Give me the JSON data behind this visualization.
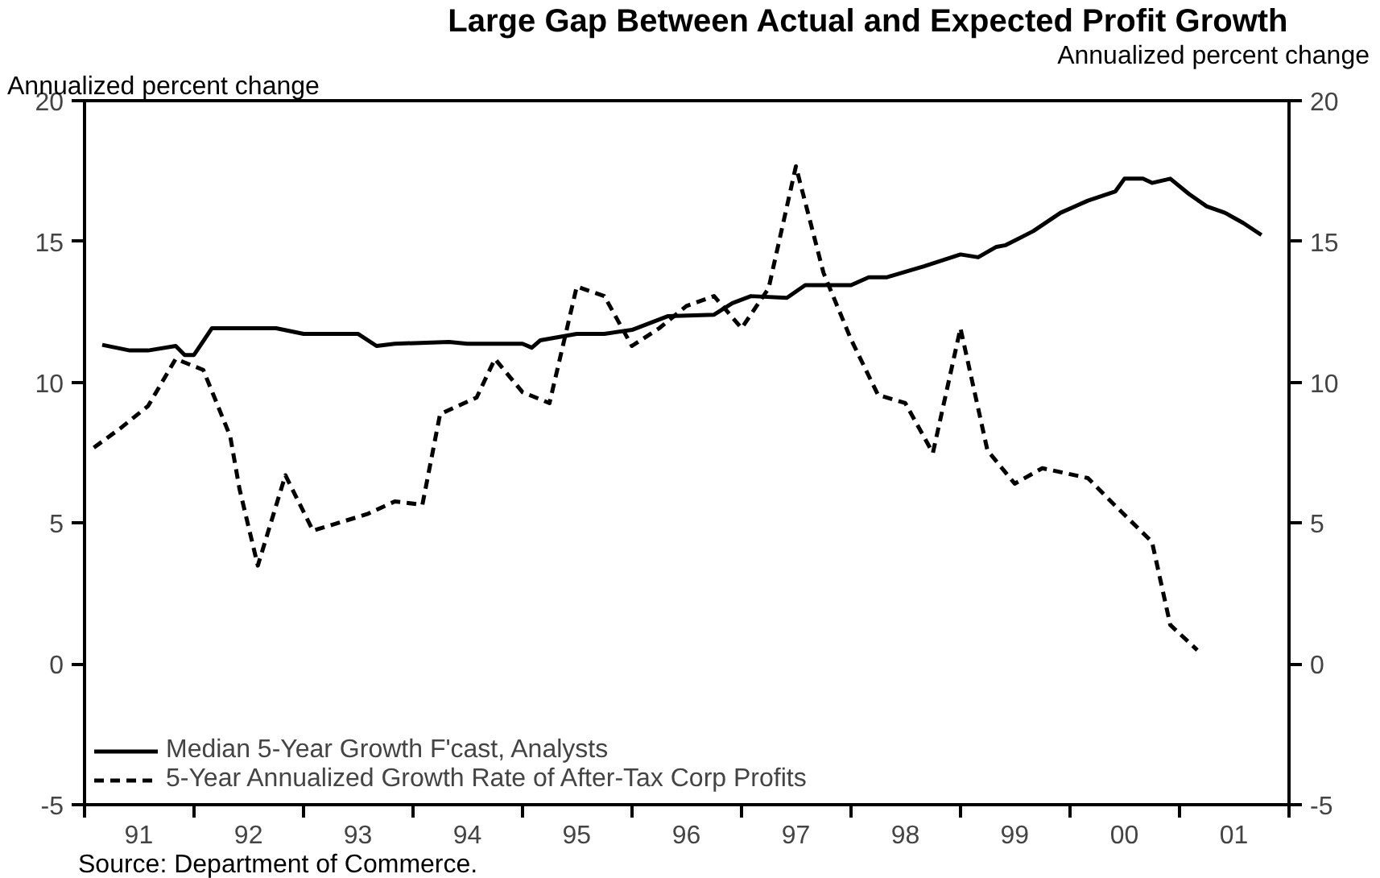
{
  "chart_data": {
    "type": "line",
    "title": "Large Gap Between Actual and Expected Profit Growth",
    "ylabel": "Annualized percent change",
    "y2label": "Annualized percent change",
    "annotations": [
      "Source: Department of Commerce."
    ],
    "xlim": [
      "1991-01",
      "2002-01"
    ],
    "ylim": [
      -5,
      20
    ],
    "y2lim": [
      -5,
      20
    ],
    "xticks": [
      {
        "value": "1991-01",
        "label": null
      },
      {
        "value": "1991-07",
        "label": "91"
      },
      {
        "value": "1992-01",
        "label": null
      },
      {
        "value": "1992-07",
        "label": "92"
      },
      {
        "value": "1993-01",
        "label": null
      },
      {
        "value": "1993-07",
        "label": "93"
      },
      {
        "value": "1994-01",
        "label": null
      },
      {
        "value": "1994-07",
        "label": "94"
      },
      {
        "value": "1995-01",
        "label": null
      },
      {
        "value": "1995-07",
        "label": "95"
      },
      {
        "value": "1996-01",
        "label": null
      },
      {
        "value": "1996-07",
        "label": "96"
      },
      {
        "value": "1997-01",
        "label": null
      },
      {
        "value": "1997-07",
        "label": "97"
      },
      {
        "value": "1998-01",
        "label": null
      },
      {
        "value": "1998-07",
        "label": "98"
      },
      {
        "value": "1999-01",
        "label": null
      },
      {
        "value": "1999-07",
        "label": "99"
      },
      {
        "value": "2000-01",
        "label": null
      },
      {
        "value": "2000-07",
        "label": "00"
      },
      {
        "value": "2001-01",
        "label": null
      },
      {
        "value": "2001-07",
        "label": "01"
      },
      {
        "value": "2002-01",
        "label": null
      }
    ],
    "yticks": [
      -5,
      0,
      5,
      10,
      15,
      20
    ],
    "y2ticks": [
      -5,
      0,
      5,
      10,
      15,
      20
    ],
    "legend": "bottom left",
    "series": [
      {
        "name": "Median 5-Year Growth F'cast, Analysts",
        "color": "#000000",
        "line_style": "solid",
        "x": [
          "1991-03",
          "1991-06",
          "1991-08",
          "1991-11",
          "1991-12",
          "1992-01",
          "1992-03",
          "1992-10",
          "1993-01",
          "1993-07",
          "1993-09",
          "1993-11",
          "1994-05",
          "1994-07",
          "1995-01",
          "1995-02",
          "1995-03",
          "1995-07",
          "1995-10",
          "1996-01",
          "1996-05",
          "1996-10",
          "1996-12",
          "1997-02",
          "1997-06",
          "1997-08",
          "1998-01",
          "1998-03",
          "1998-05",
          "1998-09",
          "1999-01",
          "1999-03",
          "1999-05",
          "1999-06",
          "1999-09",
          "1999-12",
          "2000-03",
          "2000-06",
          "2000-07",
          "2000-09",
          "2000-10",
          "2000-12",
          "2001-02",
          "2001-04",
          "2001-06",
          "2001-08",
          "2001-10"
        ],
        "values": [
          11.33,
          11.13,
          11.13,
          11.29,
          10.97,
          10.97,
          11.92,
          11.92,
          11.72,
          11.72,
          11.29,
          11.37,
          11.43,
          11.37,
          11.37,
          11.23,
          11.49,
          11.72,
          11.72,
          11.86,
          12.35,
          12.4,
          12.81,
          13.06,
          13.0,
          13.45,
          13.45,
          13.73,
          13.73,
          14.12,
          14.54,
          14.44,
          14.81,
          14.87,
          15.37,
          16.02,
          16.45,
          16.78,
          17.23,
          17.23,
          17.08,
          17.23,
          16.69,
          16.25,
          16.02,
          15.66,
          15.23
        ]
      },
      {
        "name": "5-Year Annualized Growth Rate of After-Tax Corp Profits",
        "color": "#000000",
        "line_style": "dashed",
        "x": [
          "1991-02",
          "1991-05",
          "1991-08",
          "1991-11",
          "1992-02",
          "1992-05",
          "1992-06",
          "1992-08",
          "1992-11",
          "1993-02",
          "1993-05",
          "1993-08",
          "1993-11",
          "1994-02",
          "1994-04",
          "1994-08",
          "1994-10",
          "1995-01",
          "1995-04",
          "1995-07",
          "1995-10",
          "1996-01",
          "1996-04",
          "1996-07",
          "1996-10",
          "1997-01",
          "1997-04",
          "1997-07",
          "1997-10",
          "1998-01",
          "1998-04",
          "1998-07",
          "1998-10",
          "1999-01",
          "1999-04",
          "1999-07",
          "1999-10",
          "2000-03",
          "2000-06",
          "2000-10",
          "2000-12",
          "2001-03"
        ],
        "values": [
          7.68,
          8.37,
          9.16,
          10.83,
          10.44,
          8.08,
          6.21,
          3.49,
          6.7,
          4.73,
          5.02,
          5.32,
          5.77,
          5.65,
          8.87,
          9.46,
          10.83,
          9.65,
          9.26,
          13.4,
          13.06,
          11.29,
          11.92,
          12.71,
          13.06,
          11.92,
          13.34,
          17.67,
          13.89,
          11.52,
          9.55,
          9.26,
          7.49,
          11.92,
          7.58,
          6.4,
          6.95,
          6.6,
          5.61,
          4.33,
          1.38,
          0.49
        ]
      }
    ]
  }
}
